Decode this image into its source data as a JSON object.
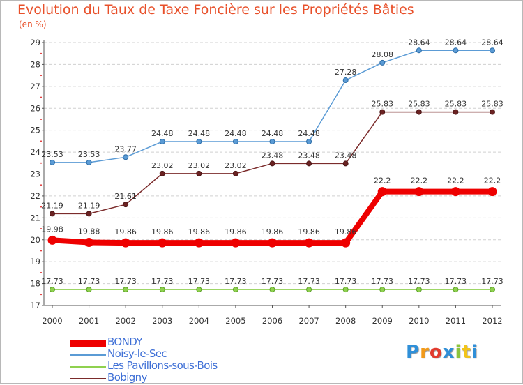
{
  "chart_data": {
    "type": "line",
    "title": "Evolution du Taux de Taxe Foncière sur les Propriétés Bâties",
    "subtitle": "(en %)",
    "x": [
      "2000",
      "2001",
      "2002",
      "2003",
      "2004",
      "2005",
      "2006",
      "2007",
      "2008",
      "2009",
      "2010",
      "2011",
      "2012"
    ],
    "ylim": [
      17,
      29
    ],
    "yticks": [
      "17",
      "18",
      "19",
      "20",
      "21",
      "22",
      "23",
      "24",
      "25",
      "26",
      "27",
      "28",
      "29"
    ],
    "grid": "horizontal dashed",
    "legend_position": "bottom-left",
    "series": [
      {
        "name": "BONDY",
        "color": "#ee0000",
        "values": [
          19.98,
          19.88,
          19.86,
          19.86,
          19.86,
          19.86,
          19.86,
          19.86,
          19.86,
          22.2,
          22.2,
          22.2,
          22.2
        ],
        "labels": [
          "19.98",
          "19.88",
          "19.86",
          "19.86",
          "19.86",
          "19.86",
          "19.86",
          "19.86",
          "19.86",
          "22.2",
          "22.2",
          "22.2",
          "22.2"
        ]
      },
      {
        "name": "Noisy-le-Sec",
        "color": "#5b9bd5",
        "values": [
          23.53,
          23.53,
          23.77,
          24.48,
          24.48,
          24.48,
          24.48,
          24.48,
          27.28,
          28.08,
          28.64,
          28.64,
          28.64
        ],
        "labels": [
          "23.53",
          "23.53",
          "23.77",
          "24.48",
          "24.48",
          "24.48",
          "24.48",
          "24.48",
          "27.28",
          "28.08",
          "28.64",
          "28.64",
          "28.64"
        ]
      },
      {
        "name": "Les Pavillons-sous-Bois",
        "color": "#8fd14f",
        "values": [
          17.73,
          17.73,
          17.73,
          17.73,
          17.73,
          17.73,
          17.73,
          17.73,
          17.73,
          17.73,
          17.73,
          17.73,
          17.73
        ],
        "labels": [
          "17.73",
          "17.73",
          "17.73",
          "17.73",
          "17.73",
          "17.73",
          "17.73",
          "17.73",
          "17.73",
          "17.73",
          "17.73",
          "17.73",
          "17.73"
        ]
      },
      {
        "name": "Bobigny",
        "color": "#7b2b2b",
        "values": [
          21.19,
          21.19,
          21.61,
          23.02,
          23.02,
          23.02,
          23.48,
          23.48,
          23.48,
          25.83,
          25.83,
          25.83,
          25.83
        ],
        "labels": [
          "21.19",
          "21.19",
          "21.61",
          "23.02",
          "23.02",
          "23.02",
          "23.48",
          "23.48",
          "23.48",
          "25.83",
          "25.83",
          "25.83",
          "25.83"
        ]
      }
    ]
  },
  "logo": {
    "letters": [
      "P",
      "r",
      "o",
      "x",
      "i",
      "t",
      "i"
    ],
    "colors": [
      "#2f8fd8",
      "#f29a1a",
      "#e23b2e",
      "#2f8fd8",
      "#8cc43c",
      "#f2c41a",
      "#2f8fd8"
    ]
  }
}
